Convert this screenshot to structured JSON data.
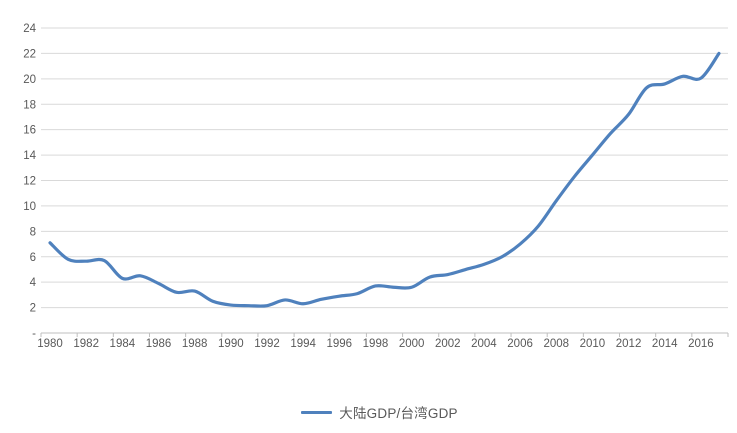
{
  "chart_data": {
    "type": "line",
    "title": "",
    "xlabel": "",
    "ylabel": "",
    "x": [
      1980,
      1981,
      1982,
      1983,
      1984,
      1985,
      1986,
      1987,
      1988,
      1989,
      1990,
      1991,
      1992,
      1993,
      1994,
      1995,
      1996,
      1997,
      1998,
      1999,
      2000,
      2001,
      2002,
      2003,
      2004,
      2005,
      2006,
      2007,
      2008,
      2009,
      2010,
      2011,
      2012,
      2013,
      2014,
      2015,
      2016,
      2017
    ],
    "series": [
      {
        "name": "大陆GDP/台湾GDP",
        "values": [
          7.1,
          5.8,
          5.65,
          5.7,
          4.3,
          4.5,
          3.9,
          3.2,
          3.3,
          2.5,
          2.2,
          2.15,
          2.15,
          2.6,
          2.3,
          2.65,
          2.9,
          3.1,
          3.7,
          3.6,
          3.6,
          4.4,
          4.6,
          5.0,
          5.4,
          6.0,
          7.0,
          8.4,
          10.4,
          12.3,
          14.0,
          15.7,
          17.2,
          19.3,
          19.6,
          20.2,
          20.05,
          22.0
        ],
        "smoothed": true
      }
    ],
    "ylim": [
      0,
      24
    ],
    "y_tick_step": 2,
    "y_tick_labels": [
      "-",
      "2",
      "4",
      "6",
      "8",
      "10",
      "12",
      "14",
      "16",
      "18",
      "20",
      "22",
      "24"
    ],
    "x_tick_labels": [
      "1980",
      "1982",
      "1984",
      "1986",
      "1988",
      "1990",
      "1992",
      "1994",
      "1996",
      "1998",
      "2000",
      "2002",
      "2004",
      "2006",
      "2008",
      "2010",
      "2012",
      "2014",
      "2016"
    ],
    "grid": true,
    "legend_position": "bottom"
  },
  "legend": {
    "series_label": "大陆GDP/台湾GDP"
  },
  "colors": {
    "line": "#4F81BD",
    "gridline": "#D9D9D9",
    "axis_line": "#BFBFBF",
    "tick_label": "#595959",
    "background": "#FFFFFF"
  }
}
